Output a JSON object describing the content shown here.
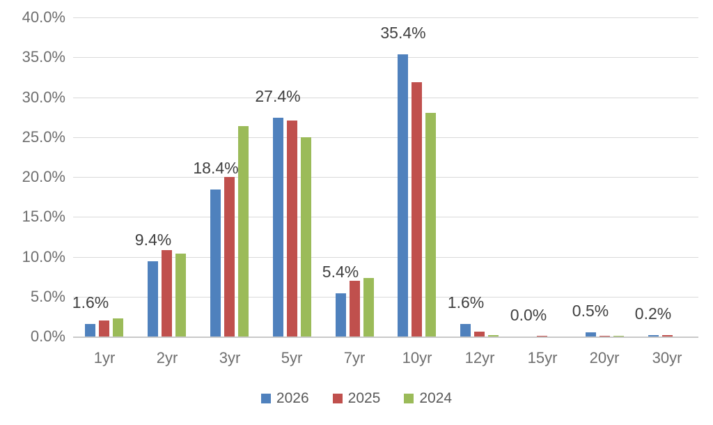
{
  "chart_data": {
    "type": "bar",
    "title": "",
    "xlabel": "",
    "ylabel": "",
    "categories": [
      "1yr",
      "2yr",
      "3yr",
      "5yr",
      "7yr",
      "10yr",
      "12yr",
      "15yr",
      "20yr",
      "30yr"
    ],
    "series": [
      {
        "name": "2026",
        "color": "#4F81BD",
        "values": [
          1.6,
          9.4,
          18.4,
          27.4,
          5.4,
          35.4,
          1.6,
          0.0,
          0.5,
          0.2
        ]
      },
      {
        "name": "2025",
        "color": "#C0504D",
        "values": [
          2.0,
          10.8,
          20.0,
          27.1,
          7.0,
          31.9,
          0.6,
          0.05,
          0.1,
          0.2
        ]
      },
      {
        "name": "2024",
        "color": "#9BBB59",
        "values": [
          2.3,
          10.4,
          26.4,
          25.0,
          7.3,
          28.0,
          0.2,
          0.0,
          0.05,
          0.0
        ]
      }
    ],
    "data_labels": [
      "1.6%",
      "9.4%",
      "18.4%",
      "27.4%",
      "5.4%",
      "35.4%",
      "1.6%",
      "0.0%",
      "0.5%",
      "0.2%"
    ],
    "data_labels_for_series": "2026",
    "y_axis": {
      "tick_labels": [
        "0.0%",
        "5.0%",
        "10.0%",
        "15.0%",
        "20.0%",
        "25.0%",
        "30.0%",
        "35.0%",
        "40.0%"
      ],
      "min": 0,
      "max": 40,
      "step": 5
    },
    "legend": {
      "position": "bottom",
      "entries": [
        "2026",
        "2025",
        "2024"
      ]
    },
    "grid": true,
    "colors": {
      "gridline": "#D9D9D9",
      "baseline": "#C9C9C9",
      "tick_label": "#6E6E6E",
      "data_label": "#3F3F3F",
      "legend_label": "#595959",
      "background": "#FFFFFF"
    }
  }
}
